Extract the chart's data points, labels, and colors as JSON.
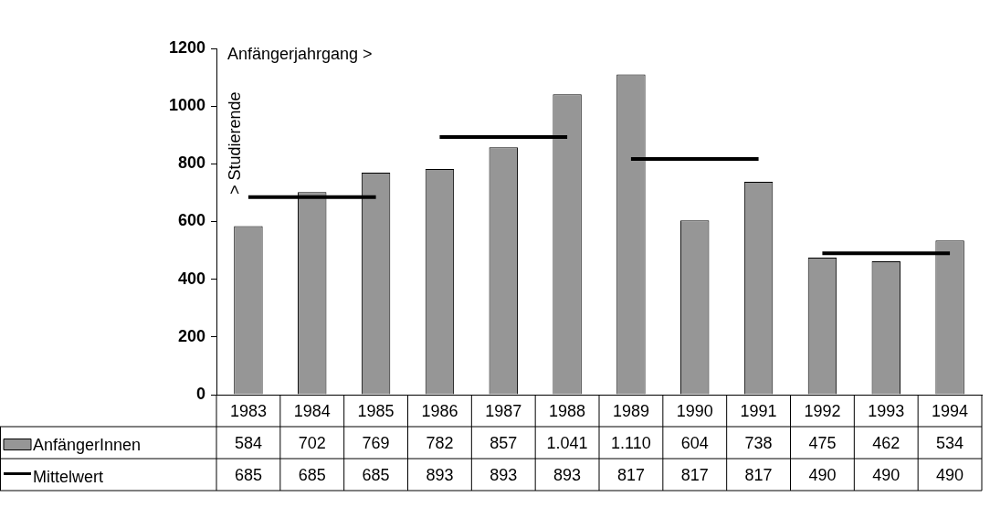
{
  "chart_data": {
    "type": "bar",
    "xlabel": "Anfängerjahrgang >",
    "ylabel": "> Studierende",
    "categories": [
      "1983",
      "1984",
      "1985",
      "1986",
      "1987",
      "1988",
      "1989",
      "1990",
      "1991",
      "1992",
      "1993",
      "1994"
    ],
    "series": [
      {
        "name": "AnfängerInnen",
        "color": "#969696",
        "values": [
          584,
          702,
          769,
          782,
          857,
          1041,
          1110,
          604,
          738,
          475,
          462,
          534
        ],
        "value_labels": [
          "584",
          "702",
          "769",
          "782",
          "857",
          "1.041",
          "1.110",
          "604",
          "738",
          "475",
          "462",
          "534"
        ]
      },
      {
        "name": "Mittelwert",
        "type": "line",
        "color": "#000000",
        "values": [
          685,
          685,
          685,
          893,
          893,
          893,
          817,
          817,
          817,
          490,
          490,
          490
        ],
        "value_labels": [
          "685",
          "685",
          "685",
          "893",
          "893",
          "893",
          "817",
          "817",
          "817",
          "490",
          "490",
          "490"
        ]
      }
    ],
    "ylim": [
      0,
      1200
    ],
    "yticks": [
      0,
      200,
      400,
      600,
      800,
      1000,
      1200
    ],
    "grid": false,
    "legend": "bottom left",
    "marker": "none",
    "line_style": "solid"
  }
}
